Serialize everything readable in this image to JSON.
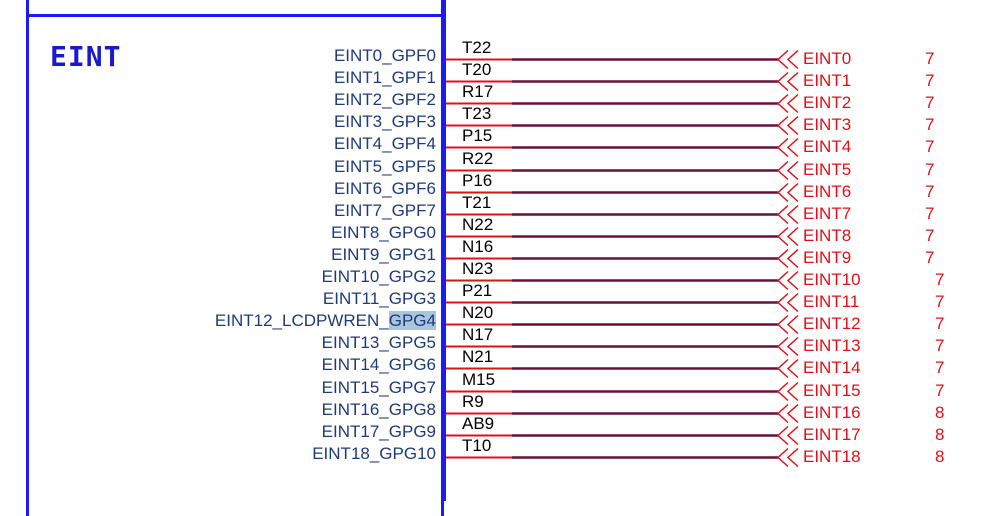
{
  "block": {
    "title": "EINT"
  },
  "colors": {
    "frame": "#1a1aff",
    "wire": "#6a0f3a",
    "pin_stub": "#e0101a",
    "net": "#e0101a",
    "pin_text": "#1f3a7a"
  },
  "pins": [
    {
      "pin": "EINT0_GPF0",
      "ball": "T22",
      "net": "EINT0",
      "page": "7"
    },
    {
      "pin": "EINT1_GPF1",
      "ball": "T20",
      "net": "EINT1",
      "page": "7"
    },
    {
      "pin": "EINT2_GPF2",
      "ball": "R17",
      "net": "EINT2",
      "page": "7"
    },
    {
      "pin": "EINT3_GPF3",
      "ball": "T23",
      "net": "EINT3",
      "page": "7"
    },
    {
      "pin": "EINT4_GPF4",
      "ball": "P15",
      "net": "EINT4",
      "page": "7"
    },
    {
      "pin": "EINT5_GPF5",
      "ball": "R22",
      "net": "EINT5",
      "page": "7"
    },
    {
      "pin": "EINT6_GPF6",
      "ball": "P16",
      "net": "EINT6",
      "page": "7"
    },
    {
      "pin": "EINT7_GPF7",
      "ball": "T21",
      "net": "EINT7",
      "page": "7"
    },
    {
      "pin": "EINT8_GPG0",
      "ball": "N22",
      "net": "EINT8",
      "page": "7"
    },
    {
      "pin": "EINT9_GPG1",
      "ball": "N16",
      "net": "EINT9",
      "page": "7"
    },
    {
      "pin": "EINT10_GPG2",
      "ball": "N23",
      "net": "EINT10",
      "page": "7"
    },
    {
      "pin": "EINT11_GPG3",
      "ball": "P21",
      "net": "EINT11",
      "page": "7"
    },
    {
      "pin": "EINT12_LCDPWREN_",
      "pin_hl": "GPG4",
      "ball": "N20",
      "net": "EINT12",
      "page": "7"
    },
    {
      "pin": "EINT13_GPG5",
      "ball": "N17",
      "net": "EINT13",
      "page": "7"
    },
    {
      "pin": "EINT14_GPG6",
      "ball": "N21",
      "net": "EINT14",
      "page": "7"
    },
    {
      "pin": "EINT15_GPG7",
      "ball": "M15",
      "net": "EINT15",
      "page": "7"
    },
    {
      "pin": "EINT16_GPG8",
      "ball": "R9",
      "net": "EINT16",
      "page": "8"
    },
    {
      "pin": "EINT17_GPG9",
      "ball": "AB9",
      "net": "EINT17",
      "page": "8"
    },
    {
      "pin": "EINT18_GPG10",
      "ball": "T10",
      "net": "EINT18",
      "page": "8"
    }
  ]
}
